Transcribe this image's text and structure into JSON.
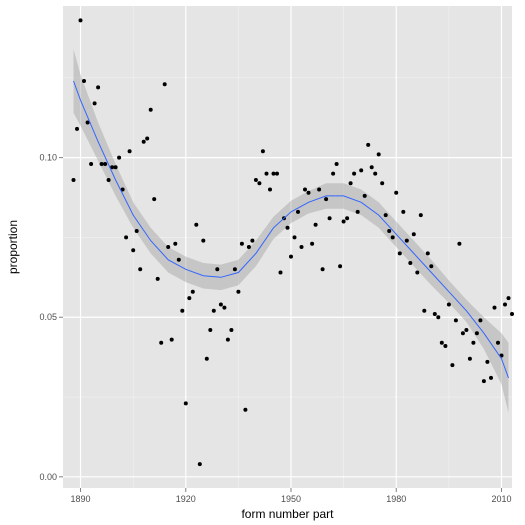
{
  "chart_data": {
    "type": "scatter",
    "xlabel": "form number part",
    "ylabel": "proportion",
    "xlim": [
      1885,
      2013
    ],
    "ylim": [
      -0.0035,
      0.1475
    ],
    "x_ticks": [
      1890,
      1920,
      1950,
      1980,
      2010
    ],
    "x_tick_labels": [
      "1890",
      "1920",
      "1950",
      "1980",
      "2010"
    ],
    "y_ticks": [
      0.0,
      0.05,
      0.1
    ],
    "y_tick_labels": [
      "0.00",
      "0.05",
      "0.10"
    ],
    "grid": true,
    "colors": {
      "panel": "#e5e5e5",
      "grid_major": "#ffffff",
      "grid_minor": "#f2f2f2",
      "points": "#000000",
      "smooth_line": "#3366ff",
      "confidence_band": "#999999"
    },
    "points": [
      [
        1888,
        0.093
      ],
      [
        1889,
        0.109
      ],
      [
        1890,
        0.143
      ],
      [
        1891,
        0.124
      ],
      [
        1892,
        0.111
      ],
      [
        1893,
        0.098
      ],
      [
        1894,
        0.117
      ],
      [
        1895,
        0.122
      ],
      [
        1896,
        0.098
      ],
      [
        1897,
        0.098
      ],
      [
        1898,
        0.093
      ],
      [
        1899,
        0.097
      ],
      [
        1900,
        0.097
      ],
      [
        1901,
        0.1
      ],
      [
        1902,
        0.09
      ],
      [
        1903,
        0.075
      ],
      [
        1904,
        0.102
      ],
      [
        1905,
        0.071
      ],
      [
        1906,
        0.077
      ],
      [
        1907,
        0.065
      ],
      [
        1908,
        0.105
      ],
      [
        1909,
        0.106
      ],
      [
        1910,
        0.115
      ],
      [
        1911,
        0.087
      ],
      [
        1912,
        0.062
      ],
      [
        1913,
        0.042
      ],
      [
        1914,
        0.123
      ],
      [
        1915,
        0.072
      ],
      [
        1916,
        0.043
      ],
      [
        1917,
        0.073
      ],
      [
        1918,
        0.068
      ],
      [
        1919,
        0.052
      ],
      [
        1920,
        0.023
      ],
      [
        1921,
        0.056
      ],
      [
        1922,
        0.058
      ],
      [
        1923,
        0.079
      ],
      [
        1924,
        0.004
      ],
      [
        1925,
        0.074
      ],
      [
        1926,
        0.037
      ],
      [
        1927,
        0.046
      ],
      [
        1928,
        0.052
      ],
      [
        1929,
        0.065
      ],
      [
        1930,
        0.054
      ],
      [
        1931,
        0.053
      ],
      [
        1932,
        0.043
      ],
      [
        1933,
        0.046
      ],
      [
        1934,
        0.065
      ],
      [
        1935,
        0.058
      ],
      [
        1936,
        0.073
      ],
      [
        1937,
        0.021
      ],
      [
        1938,
        0.072
      ],
      [
        1939,
        0.074
      ],
      [
        1940,
        0.093
      ],
      [
        1941,
        0.092
      ],
      [
        1942,
        0.102
      ],
      [
        1943,
        0.095
      ],
      [
        1944,
        0.09
      ],
      [
        1945,
        0.095
      ],
      [
        1946,
        0.095
      ],
      [
        1947,
        0.064
      ],
      [
        1948,
        0.081
      ],
      [
        1949,
        0.078
      ],
      [
        1950,
        0.069
      ],
      [
        1951,
        0.075
      ],
      [
        1952,
        0.083
      ],
      [
        1953,
        0.072
      ],
      [
        1954,
        0.09
      ],
      [
        1955,
        0.089
      ],
      [
        1956,
        0.073
      ],
      [
        1957,
        0.079
      ],
      [
        1958,
        0.09
      ],
      [
        1959,
        0.065
      ],
      [
        1960,
        0.087
      ],
      [
        1961,
        0.081
      ],
      [
        1962,
        0.095
      ],
      [
        1963,
        0.098
      ],
      [
        1964,
        0.066
      ],
      [
        1965,
        0.08
      ],
      [
        1966,
        0.081
      ],
      [
        1967,
        0.092
      ],
      [
        1968,
        0.095
      ],
      [
        1969,
        0.083
      ],
      [
        1970,
        0.096
      ],
      [
        1971,
        0.088
      ],
      [
        1972,
        0.104
      ],
      [
        1973,
        0.097
      ],
      [
        1974,
        0.095
      ],
      [
        1975,
        0.101
      ],
      [
        1976,
        0.092
      ],
      [
        1977,
        0.082
      ],
      [
        1978,
        0.077
      ],
      [
        1979,
        0.075
      ],
      [
        1980,
        0.089
      ],
      [
        1981,
        0.07
      ],
      [
        1982,
        0.083
      ],
      [
        1983,
        0.074
      ],
      [
        1984,
        0.067
      ],
      [
        1985,
        0.076
      ],
      [
        1986,
        0.064
      ],
      [
        1987,
        0.082
      ],
      [
        1988,
        0.052
      ],
      [
        1989,
        0.07
      ],
      [
        1990,
        0.066
      ],
      [
        1991,
        0.051
      ],
      [
        1992,
        0.05
      ],
      [
        1993,
        0.042
      ],
      [
        1994,
        0.041
      ],
      [
        1995,
        0.054
      ],
      [
        1996,
        0.035
      ],
      [
        1997,
        0.049
      ],
      [
        1998,
        0.073
      ],
      [
        1999,
        0.045
      ],
      [
        2000,
        0.046
      ],
      [
        2001,
        0.037
      ],
      [
        2002,
        0.042
      ],
      [
        2003,
        0.045
      ],
      [
        2004,
        0.049
      ],
      [
        2005,
        0.03
      ],
      [
        2006,
        0.036
      ],
      [
        2007,
        0.031
      ],
      [
        2008,
        0.053
      ],
      [
        2009,
        0.042
      ],
      [
        2010,
        0.038
      ],
      [
        2011,
        0.054
      ],
      [
        2012,
        0.056
      ],
      [
        2013,
        0.051
      ]
    ],
    "smooth": {
      "x": [
        1888,
        1890,
        1895,
        1900,
        1905,
        1910,
        1915,
        1920,
        1925,
        1930,
        1935,
        1940,
        1945,
        1950,
        1955,
        1960,
        1965,
        1970,
        1975,
        1980,
        1985,
        1990,
        1995,
        2000,
        2005,
        2010,
        2012
      ],
      "y": [
        0.124,
        0.118,
        0.105,
        0.093,
        0.082,
        0.074,
        0.068,
        0.065,
        0.063,
        0.0625,
        0.064,
        0.07,
        0.078,
        0.083,
        0.086,
        0.088,
        0.088,
        0.086,
        0.082,
        0.076,
        0.07,
        0.064,
        0.058,
        0.052,
        0.045,
        0.037,
        0.031
      ],
      "lower": [
        0.114,
        0.11,
        0.099,
        0.088,
        0.078,
        0.07,
        0.064,
        0.061,
        0.059,
        0.0585,
        0.06,
        0.066,
        0.0745,
        0.0795,
        0.0825,
        0.084,
        0.084,
        0.082,
        0.078,
        0.072,
        0.066,
        0.06,
        0.0545,
        0.0485,
        0.04,
        0.029,
        0.02
      ],
      "upper": [
        0.134,
        0.126,
        0.111,
        0.098,
        0.086,
        0.078,
        0.072,
        0.069,
        0.067,
        0.0665,
        0.068,
        0.074,
        0.0815,
        0.0865,
        0.0895,
        0.092,
        0.092,
        0.09,
        0.086,
        0.08,
        0.074,
        0.068,
        0.0615,
        0.0555,
        0.05,
        0.045,
        0.042
      ]
    }
  }
}
